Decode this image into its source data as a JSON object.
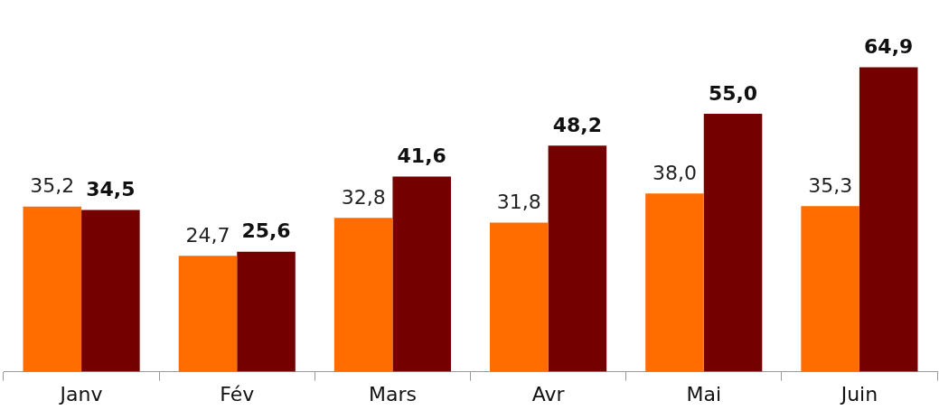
{
  "chart_data": {
    "type": "bar",
    "categories": [
      "Janv",
      "Fév",
      "Mars",
      "Avr",
      "Mai",
      "Juin"
    ],
    "series": [
      {
        "color": "#ff6d00",
        "values": [
          35.2,
          24.7,
          32.8,
          31.8,
          38.0,
          35.3
        ],
        "value_labels": [
          "35,2",
          "24,7",
          "32,8",
          "31,8",
          "38,0",
          "35,3"
        ]
      },
      {
        "color": "#750000",
        "values": [
          34.5,
          25.6,
          41.6,
          48.2,
          55.0,
          64.9
        ],
        "value_labels": [
          "34,5",
          "25,6",
          "41,6",
          "48,2",
          "55,0",
          "64,9"
        ]
      }
    ],
    "grid": false,
    "legend": false
  }
}
